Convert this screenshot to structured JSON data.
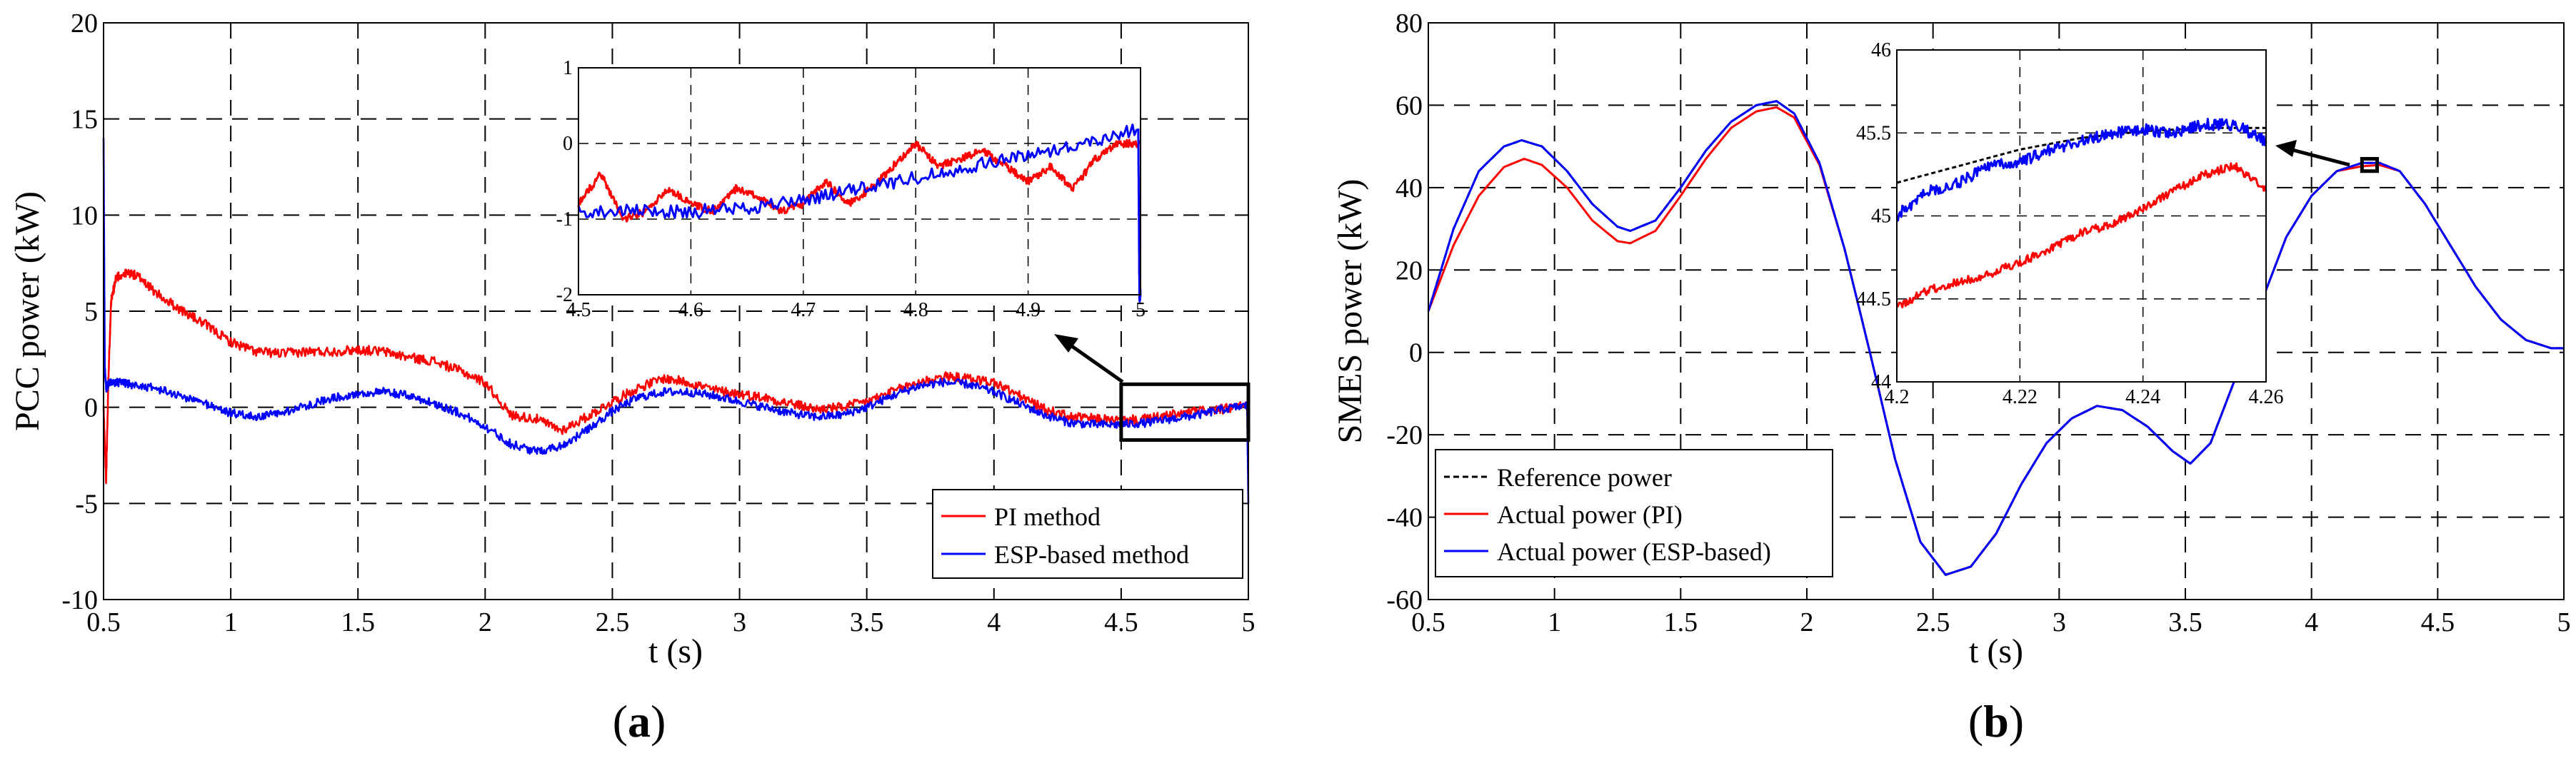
{
  "chart_data": [
    {
      "id": "a",
      "type": "line",
      "panel_label": "a",
      "xlabel": "t (s)",
      "ylabel": "PCC power (kW)",
      "xlim": [
        0.5,
        5
      ],
      "ylim": [
        -10,
        20
      ],
      "xticks": [
        0.5,
        1,
        1.5,
        2,
        2.5,
        3,
        3.5,
        4,
        4.5,
        5
      ],
      "xtick_labels": [
        "0.5",
        "1",
        "1.5",
        "2",
        "2.5",
        "3",
        "3.5",
        "4",
        "4.5",
        "5"
      ],
      "yticks": [
        -10,
        -5,
        0,
        5,
        10,
        15,
        20
      ],
      "ytick_labels": [
        "-10",
        "-5",
        "0",
        "5",
        "10",
        "15",
        "20"
      ],
      "grid": true,
      "legend_position": "bottom-right",
      "legend_labels": [
        "PI method",
        "ESP-based method"
      ],
      "series": [
        {
          "name": "PI method",
          "color": "#ff0000",
          "noise": 0.25,
          "x": [
            0.5,
            0.51,
            0.52,
            0.53,
            0.55,
            0.6,
            0.65,
            0.7,
            0.8,
            0.9,
            1.0,
            1.1,
            1.2,
            1.3,
            1.4,
            1.5,
            1.6,
            1.7,
            1.8,
            1.9,
            2.0,
            2.1,
            2.2,
            2.3,
            2.4,
            2.5,
            2.6,
            2.7,
            2.8,
            2.9,
            3.0,
            3.1,
            3.2,
            3.3,
            3.4,
            3.5,
            3.6,
            3.7,
            3.8,
            3.9,
            4.0,
            4.1,
            4.2,
            4.3,
            4.4,
            4.5,
            4.6,
            4.7,
            4.8,
            4.9,
            5.0
          ],
          "y": [
            0,
            -3.8,
            2.0,
            5.5,
            6.8,
            7.0,
            6.7,
            6.0,
            5.1,
            4.3,
            3.4,
            2.9,
            2.8,
            2.9,
            2.9,
            3.0,
            2.9,
            2.6,
            2.4,
            1.9,
            1.3,
            -0.4,
            -0.6,
            -1.2,
            -0.5,
            0.3,
            1.0,
            1.5,
            1.3,
            0.9,
            0.7,
            0.5,
            0.2,
            -0.1,
            0.0,
            0.3,
            0.8,
            1.3,
            1.6,
            1.5,
            1.3,
            0.6,
            -0.1,
            -0.5,
            -0.6,
            -0.7,
            -0.6,
            -0.4,
            -0.2,
            -0.1,
            0.1
          ]
        },
        {
          "name": "ESP-based method",
          "color": "#0000ff",
          "noise": 0.22,
          "x": [
            0.5,
            0.505,
            0.51,
            0.52,
            0.53,
            0.55,
            0.6,
            0.7,
            0.8,
            0.9,
            1.0,
            1.1,
            1.2,
            1.3,
            1.4,
            1.5,
            1.6,
            1.7,
            1.8,
            1.9,
            2.0,
            2.1,
            2.2,
            2.3,
            2.4,
            2.5,
            2.6,
            2.7,
            2.8,
            2.9,
            3.0,
            3.1,
            3.2,
            3.3,
            3.4,
            3.5,
            3.6,
            3.7,
            3.8,
            3.9,
            4.0,
            4.1,
            4.2,
            4.3,
            4.4,
            4.5,
            4.6,
            4.7,
            4.8,
            4.9,
            4.995,
            5.0
          ],
          "y": [
            14,
            2.0,
            1.0,
            1.2,
            1.3,
            1.3,
            1.2,
            1.0,
            0.6,
            0.2,
            -0.3,
            -0.5,
            -0.3,
            0.1,
            0.5,
            0.7,
            0.8,
            0.6,
            0.2,
            -0.3,
            -1.0,
            -1.9,
            -2.3,
            -2.0,
            -1.2,
            -0.2,
            0.5,
            0.8,
            0.8,
            0.6,
            0.3,
            0.0,
            -0.3,
            -0.5,
            -0.4,
            0.0,
            0.6,
            1.1,
            1.3,
            1.2,
            0.8,
            0.2,
            -0.4,
            -0.8,
            -0.9,
            -0.9,
            -0.8,
            -0.6,
            -0.4,
            -0.1,
            0.1,
            -5.0
          ]
        }
      ],
      "zoom_box": {
        "x_range": [
          4.5,
          5.0
        ],
        "y_range": [
          -1.7,
          1.2
        ]
      },
      "inset": {
        "xlim": [
          4.5,
          5
        ],
        "ylim": [
          -2,
          1
        ],
        "xticks": [
          4.5,
          4.6,
          4.7,
          4.8,
          4.9,
          5
        ],
        "xtick_labels": [
          "4.5",
          "4.6",
          "4.7",
          "4.8",
          "4.9",
          "5"
        ],
        "yticks": [
          -2,
          -1,
          0,
          1
        ],
        "ytick_labels": [
          "-2",
          "-1",
          "0",
          "1"
        ],
        "series": [
          {
            "name": "PI method",
            "color": "#ff0000",
            "noise": 0.05,
            "x": [
              4.5,
              4.52,
              4.54,
              4.56,
              4.58,
              4.6,
              4.62,
              4.64,
              4.66,
              4.68,
              4.7,
              4.72,
              4.74,
              4.76,
              4.78,
              4.8,
              4.82,
              4.84,
              4.86,
              4.88,
              4.9,
              4.92,
              4.94,
              4.96,
              4.98,
              5.0
            ],
            "y": [
              -0.8,
              -0.4,
              -1.0,
              -0.9,
              -0.6,
              -0.8,
              -0.9,
              -0.6,
              -0.7,
              -0.9,
              -0.8,
              -0.5,
              -0.8,
              -0.6,
              -0.3,
              0.0,
              -0.3,
              -0.2,
              -0.1,
              -0.3,
              -0.5,
              -0.3,
              -0.6,
              -0.2,
              0.0,
              0.0
            ]
          },
          {
            "name": "ESP-based method",
            "color": "#0000ff",
            "noise": 0.09,
            "x": [
              4.5,
              4.55,
              4.6,
              4.65,
              4.7,
              4.75,
              4.8,
              4.85,
              4.9,
              4.95,
              4.998,
              4.999,
              5.0
            ],
            "y": [
              -0.9,
              -0.9,
              -0.9,
              -0.85,
              -0.75,
              -0.6,
              -0.45,
              -0.3,
              -0.15,
              0.0,
              0.2,
              -2.0,
              -2.0
            ]
          }
        ]
      }
    },
    {
      "id": "b",
      "type": "line",
      "panel_label": "b",
      "xlabel": "t (s)",
      "ylabel": "SMES power (kW)",
      "xlim": [
        0.5,
        5
      ],
      "ylim": [
        -60,
        80
      ],
      "xticks": [
        0.5,
        1,
        1.5,
        2,
        2.5,
        3,
        3.5,
        4,
        4.5,
        5
      ],
      "xtick_labels": [
        "0.5",
        "1",
        "1.5",
        "2",
        "2.5",
        "3",
        "3.5",
        "4",
        "4.5",
        "5"
      ],
      "yticks": [
        -60,
        -40,
        -20,
        0,
        20,
        40,
        60,
        80
      ],
      "ytick_labels": [
        "-60",
        "-40",
        "-20",
        "0",
        "20",
        "40",
        "60",
        "80"
      ],
      "grid": true,
      "legend_position": "bottom-left",
      "legend_labels": [
        "Reference power",
        "Actual power (PI)",
        "Actual power (ESP-based)"
      ],
      "series": [
        {
          "name": "Reference power",
          "color": "#000000",
          "dash": "8,5",
          "x": [
            0.5,
            0.6,
            0.7,
            0.8,
            0.87,
            0.95,
            1.05,
            1.15,
            1.25,
            1.3,
            1.4,
            1.5,
            1.6,
            1.7,
            1.8,
            1.88,
            1.95,
            2.05,
            2.15,
            2.25,
            2.35,
            2.45,
            2.55,
            2.65,
            2.75,
            2.85,
            2.95,
            3.05,
            3.15,
            3.25,
            3.35,
            3.45,
            3.52,
            3.6,
            3.7,
            3.8,
            3.9,
            4.0,
            4.1,
            4.2,
            4.27,
            4.35,
            4.45,
            4.55,
            4.65,
            4.75,
            4.85,
            4.95,
            5.0
          ],
          "y": [
            10,
            30,
            44,
            50,
            51.5,
            50,
            44,
            36,
            30.5,
            29.5,
            32,
            40,
            49,
            56,
            60,
            61,
            58,
            46,
            25,
            0,
            -26,
            -46,
            -54,
            -52,
            -44,
            -32,
            -22,
            -16,
            -13,
            -14,
            -18,
            -24,
            -27,
            -22,
            -6,
            12,
            28,
            38,
            44,
            46,
            46,
            44,
            36,
            26,
            16,
            8,
            3,
            1,
            1
          ]
        },
        {
          "name": "Actual power (PI)",
          "color": "#ff0000",
          "x": [
            0.5,
            0.6,
            0.7,
            0.8,
            0.88,
            0.95,
            1.05,
            1.15,
            1.25,
            1.3,
            1.4,
            1.5,
            1.6,
            1.7,
            1.8,
            1.88,
            1.95,
            2.05,
            2.15,
            2.25,
            2.35,
            2.45,
            2.55,
            2.65,
            2.75,
            2.85,
            2.95,
            3.05,
            3.15,
            3.25,
            3.35,
            3.45,
            3.52,
            3.6,
            3.7,
            3.8,
            3.9,
            4.0,
            4.1,
            4.2,
            4.27,
            4.35,
            4.45,
            4.55,
            4.65,
            4.75,
            4.85,
            4.95,
            5.0
          ],
          "y": [
            10,
            26,
            38,
            45,
            47,
            45.5,
            40,
            32,
            27,
            26.5,
            29.5,
            38,
            47,
            54.5,
            58.5,
            59.5,
            57,
            45.5,
            25,
            0,
            -26,
            -46,
            -54,
            -52,
            -44,
            -32,
            -22,
            -16,
            -13,
            -14,
            -18,
            -24,
            -27,
            -22,
            -6,
            12,
            28,
            38,
            44,
            45.2,
            45.5,
            44,
            36,
            26,
            16,
            8,
            3,
            1,
            1
          ]
        },
        {
          "name": "Actual power (ESP-based)",
          "color": "#0000ff",
          "x": [
            0.5,
            0.6,
            0.7,
            0.8,
            0.87,
            0.95,
            1.05,
            1.15,
            1.25,
            1.3,
            1.4,
            1.5,
            1.6,
            1.7,
            1.8,
            1.88,
            1.95,
            2.05,
            2.15,
            2.25,
            2.35,
            2.45,
            2.55,
            2.65,
            2.75,
            2.85,
            2.95,
            3.05,
            3.15,
            3.25,
            3.35,
            3.45,
            3.52,
            3.6,
            3.7,
            3.8,
            3.9,
            4.0,
            4.1,
            4.2,
            4.27,
            4.35,
            4.45,
            4.55,
            4.65,
            4.75,
            4.85,
            4.95,
            5.0
          ],
          "y": [
            10,
            30,
            44,
            50,
            51.5,
            50,
            44,
            36,
            30.5,
            29.5,
            32,
            40,
            49,
            56,
            60,
            61,
            58,
            46,
            25,
            0,
            -26,
            -46,
            -54,
            -52,
            -44,
            -32,
            -22,
            -16,
            -13,
            -14,
            -18,
            -24,
            -27,
            -22,
            -6,
            12,
            28,
            38,
            44,
            46,
            46,
            44,
            36,
            26,
            16,
            8,
            3,
            1,
            1
          ]
        }
      ],
      "zoom_box": {
        "x_range": [
          4.2,
          4.26
        ],
        "y_range": [
          44,
          47
        ]
      },
      "inset": {
        "xlim": [
          4.2,
          4.26
        ],
        "ylim": [
          44,
          46
        ],
        "xticks": [
          4.2,
          4.22,
          4.24,
          4.26
        ],
        "xtick_labels": [
          "4.2",
          "4.22",
          "4.24",
          "4.26"
        ],
        "yticks": [
          44,
          44.5,
          45,
          45.5,
          46
        ],
        "ytick_labels": [
          "44",
          "44.5",
          "45",
          "45.5",
          "46"
        ],
        "series": [
          {
            "name": "Reference power",
            "color": "#000000",
            "dash": "6,4",
            "noise": 0,
            "x": [
              4.2,
              4.21,
              4.22,
              4.23,
              4.24,
              4.25,
              4.26
            ],
            "y": [
              45.2,
              45.3,
              45.4,
              45.47,
              45.51,
              45.53,
              45.53
            ]
          },
          {
            "name": "Actual power (PI)",
            "color": "#ff0000",
            "noise": 0.025,
            "x": [
              4.2,
              4.205,
              4.21,
              4.215,
              4.22,
              4.225,
              4.23,
              4.235,
              4.24,
              4.245,
              4.25,
              4.255,
              4.26
            ],
            "y": [
              44.45,
              44.55,
              44.6,
              44.65,
              44.72,
              44.8,
              44.9,
              44.95,
              45.05,
              45.15,
              45.25,
              45.3,
              45.15
            ]
          },
          {
            "name": "Actual power (ESP-based)",
            "color": "#0000ff",
            "noise": 0.035,
            "x": [
              4.2,
              4.205,
              4.21,
              4.215,
              4.22,
              4.225,
              4.23,
              4.235,
              4.24,
              4.245,
              4.25,
              4.255,
              4.26
            ],
            "y": [
              45.0,
              45.15,
              45.2,
              45.3,
              45.32,
              45.4,
              45.45,
              45.5,
              45.52,
              45.5,
              45.55,
              45.55,
              45.45
            ]
          }
        ]
      }
    }
  ]
}
